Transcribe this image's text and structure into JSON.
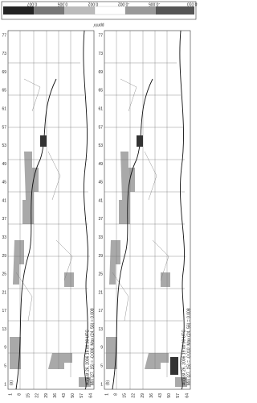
{
  "colorbar": {
    "labels": [
      "0.007",
      "0.005",
      "0.002",
      "-0.002",
      "-0.005",
      "-0.010"
    ],
    "unit": "ppmV"
  },
  "panels": [
    {
      "label": "(a)",
      "date": "August 26, 2006 19:00:00 UTC",
      "stats": "Min (27, 15) = -0.006; Max (24, 56) = 0.008",
      "y_ticks": [
        77,
        73,
        69,
        65,
        61,
        57,
        53,
        49,
        45,
        41,
        37,
        33,
        29,
        25,
        21,
        17,
        13,
        9,
        5,
        1
      ],
      "x_ticks": [
        1,
        8,
        15,
        22,
        29,
        36,
        43,
        50,
        57,
        64
      ]
    },
    {
      "label": "(b)",
      "date": "August 26, 2006 19:00:00 UTC",
      "stats": "Min (27, 15) = -0.010; Max (24, 56) = 0.008",
      "y_ticks": [
        77,
        73,
        69,
        65,
        61,
        57,
        53,
        49,
        45,
        41,
        37,
        33,
        29,
        25,
        21,
        17,
        13,
        9,
        5,
        1
      ],
      "x_ticks": [
        1,
        8,
        15,
        22,
        29,
        36,
        43,
        50,
        57,
        64
      ]
    }
  ]
}
